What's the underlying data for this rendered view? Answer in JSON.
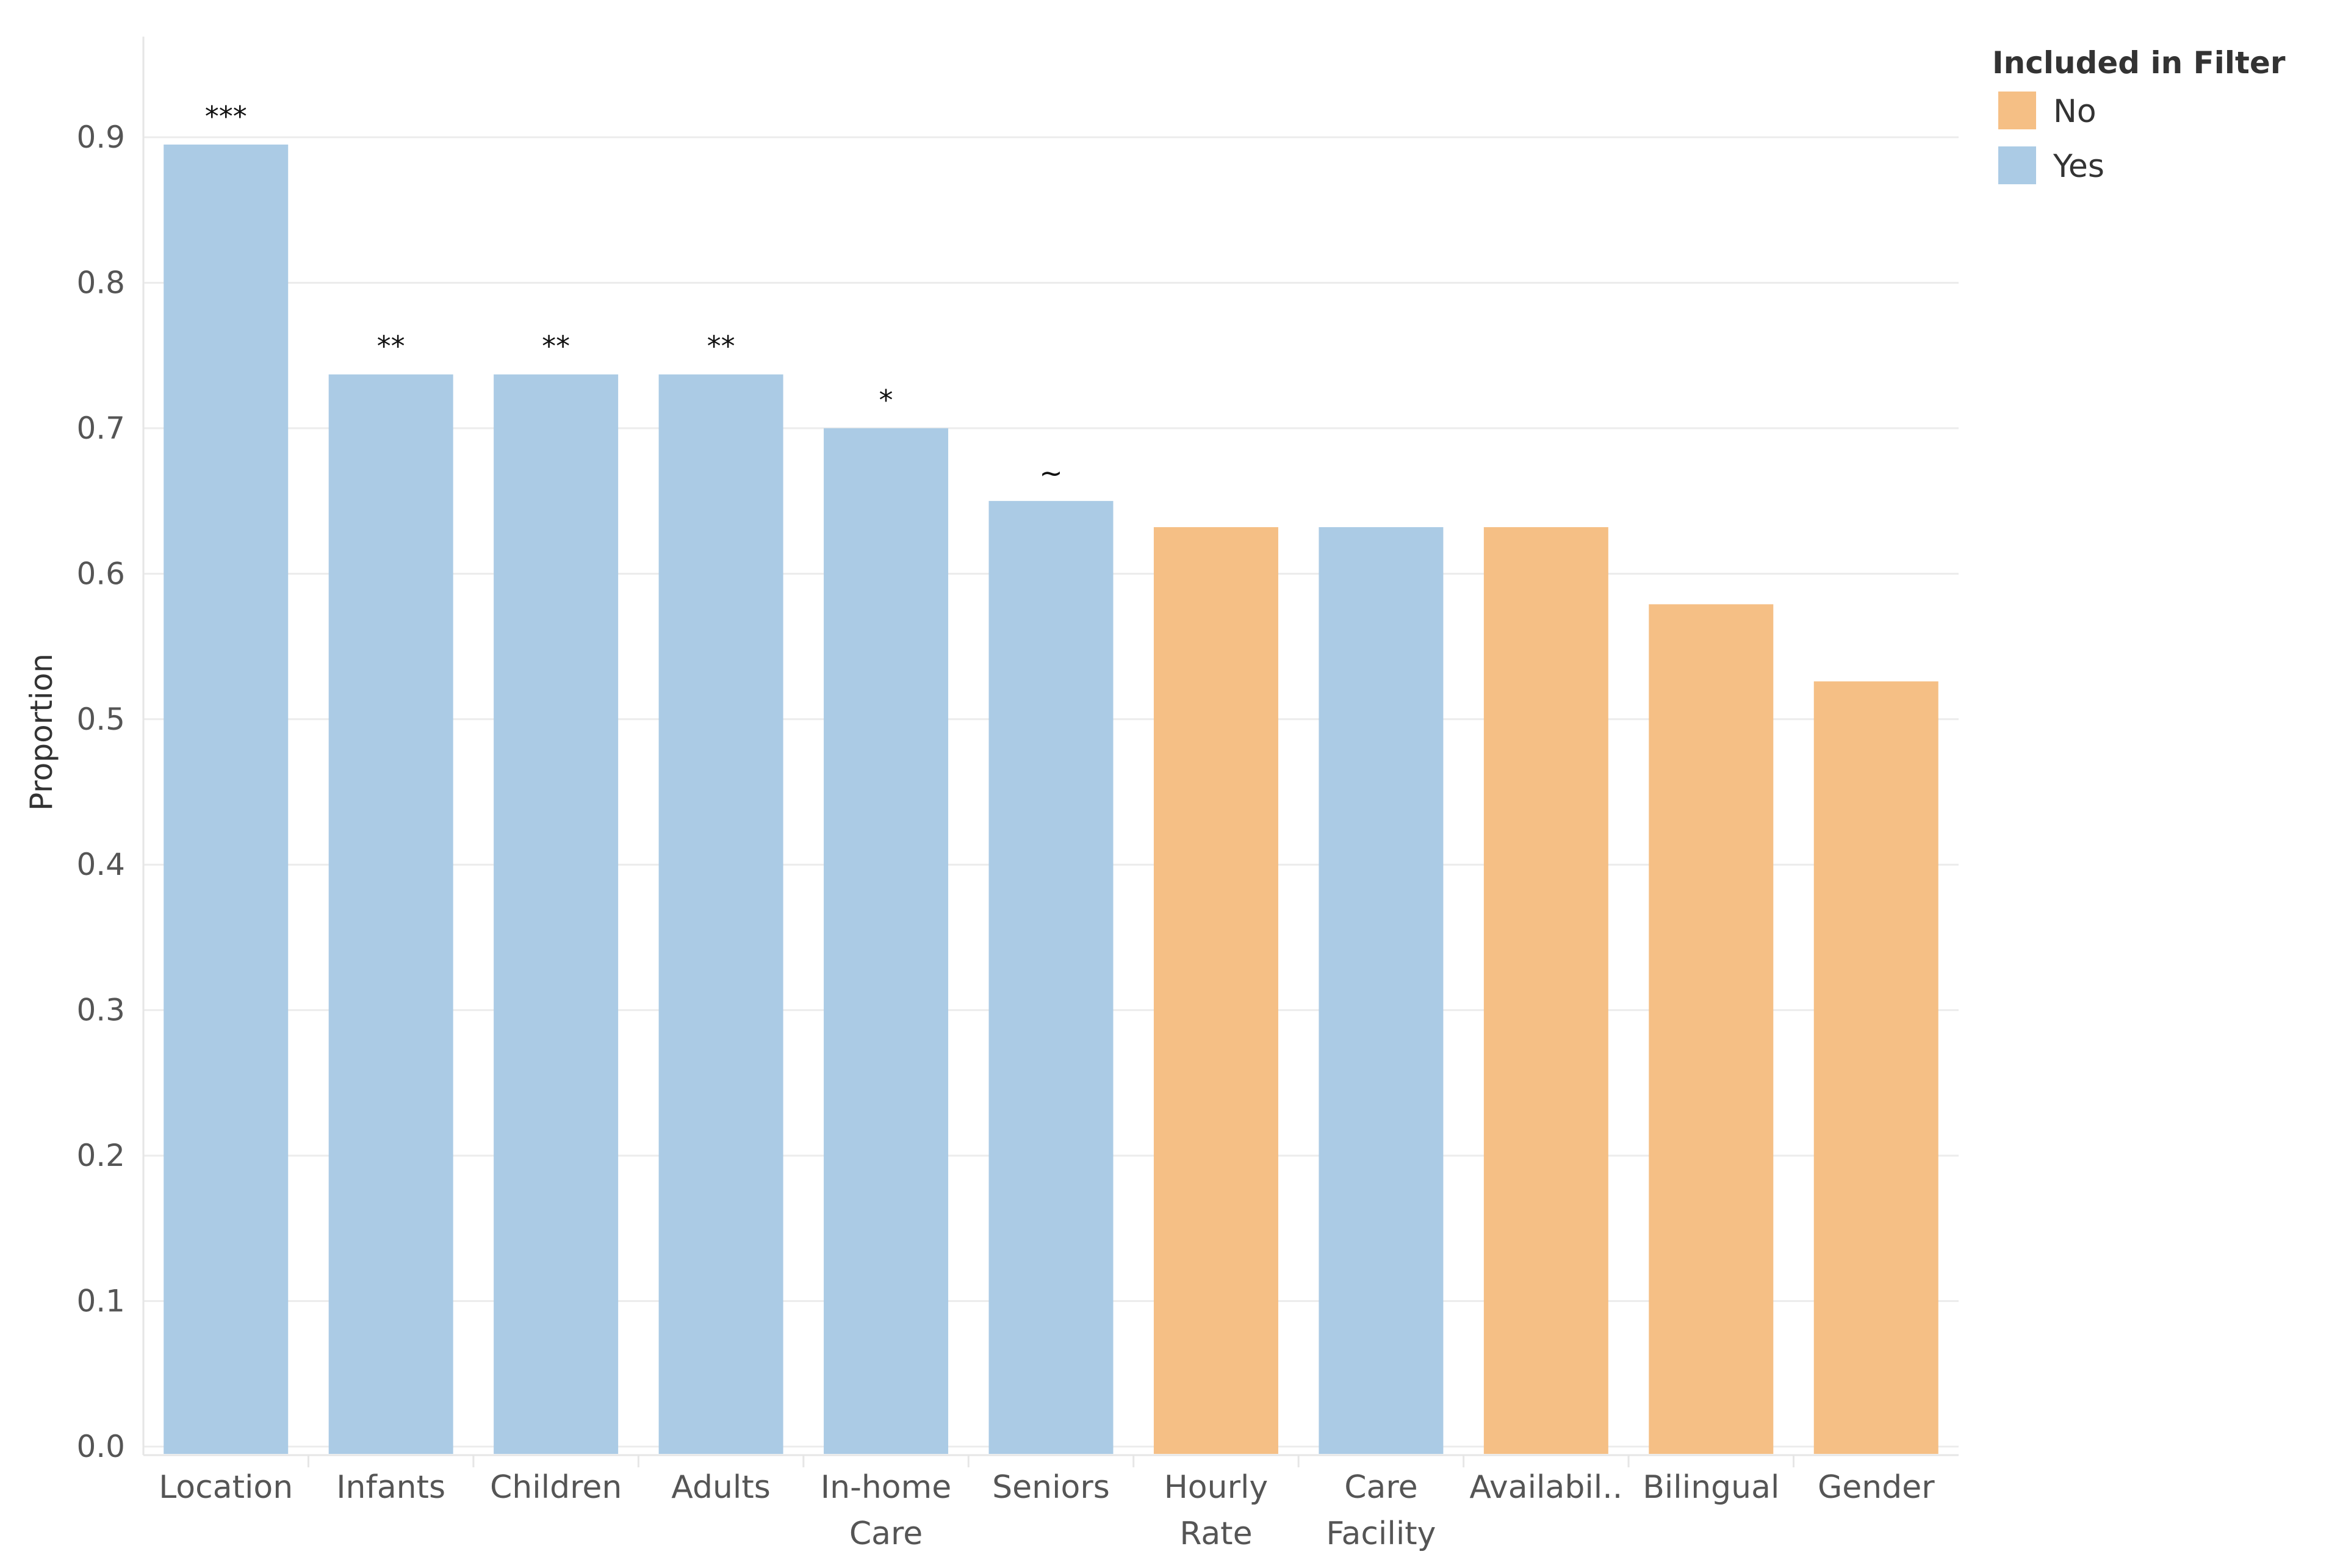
{
  "chart_data": {
    "type": "bar",
    "ylabel": "Proportion",
    "xlabel": "",
    "ylim": [
      0,
      0.9
    ],
    "yticks": [
      "0.0",
      "0.1",
      "0.2",
      "0.3",
      "0.4",
      "0.5",
      "0.6",
      "0.7",
      "0.8",
      "0.9"
    ],
    "grid": true,
    "legend": {
      "title": "Included in Filter",
      "placement": "top-right",
      "entries": [
        {
          "name": "No",
          "color": "#f5bf85"
        },
        {
          "name": "Yes",
          "color": "#abcbe5"
        }
      ]
    },
    "bars": [
      {
        "category": [
          "Location"
        ],
        "value": 0.895,
        "group": "Yes",
        "significance": "***"
      },
      {
        "category": [
          "Infants"
        ],
        "value": 0.737,
        "group": "Yes",
        "significance": "**"
      },
      {
        "category": [
          "Children"
        ],
        "value": 0.737,
        "group": "Yes",
        "significance": "**"
      },
      {
        "category": [
          "Adults"
        ],
        "value": 0.737,
        "group": "Yes",
        "significance": "**"
      },
      {
        "category": [
          "In-home",
          "Care"
        ],
        "value": 0.7,
        "group": "Yes",
        "significance": "*"
      },
      {
        "category": [
          "Seniors"
        ],
        "value": 0.65,
        "group": "Yes",
        "significance": "~"
      },
      {
        "category": [
          "Hourly",
          "Rate"
        ],
        "value": 0.632,
        "group": "No",
        "significance": ""
      },
      {
        "category": [
          "Care",
          "Facility"
        ],
        "value": 0.632,
        "group": "Yes",
        "significance": ""
      },
      {
        "category": [
          "Availabil.."
        ],
        "value": 0.632,
        "group": "No",
        "significance": ""
      },
      {
        "category": [
          "Bilingual"
        ],
        "value": 0.579,
        "group": "No",
        "significance": ""
      },
      {
        "category": [
          "Gender"
        ],
        "value": 0.526,
        "group": "No",
        "significance": ""
      }
    ]
  }
}
